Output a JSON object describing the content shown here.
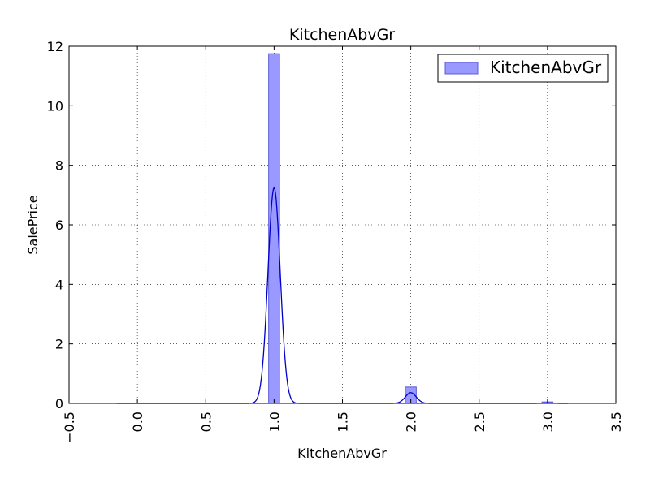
{
  "chart_data": {
    "type": "bar",
    "title": "KitchenAbvGr",
    "xlabel": "KitchenAbvGr",
    "ylabel": "SalePrice",
    "xlim": [
      -0.5,
      3.5
    ],
    "ylim": [
      0,
      12
    ],
    "x_ticks": [
      "−0.5",
      "0.0",
      "0.5",
      "1.0",
      "1.5",
      "2.0",
      "2.5",
      "3.0",
      "3.5"
    ],
    "y_ticks": [
      "0",
      "2",
      "4",
      "6",
      "8",
      "10",
      "12"
    ],
    "grid": true,
    "legend": {
      "position": "top-right",
      "entries": [
        "KitchenAbvGr"
      ]
    },
    "histogram": {
      "name": "KitchenAbvGr",
      "color": "#9999ff",
      "edge_color": "#5c5cd6",
      "bin_width": 0.08,
      "bins": [
        {
          "x": 1.0,
          "height": 11.75
        },
        {
          "x": 2.0,
          "height": 0.55
        },
        {
          "x": 3.0,
          "height": 0.05
        }
      ]
    },
    "kde": {
      "color": "#0000cc",
      "x_range": [
        -0.15,
        3.15
      ],
      "peaks": [
        {
          "center": 1.0,
          "height": 7.25,
          "sigma": 0.045
        },
        {
          "center": 2.0,
          "height": 0.36,
          "sigma": 0.04
        },
        {
          "center": 3.0,
          "height": 0.015,
          "sigma": 0.04
        }
      ]
    }
  }
}
